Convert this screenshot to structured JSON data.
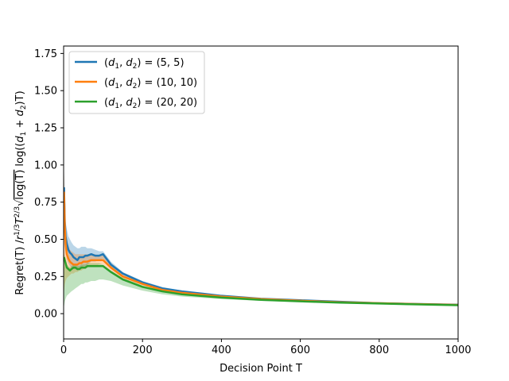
{
  "chart_data": {
    "type": "line",
    "xlabel": "Decision Point T",
    "ylabel": "Regret(T) /r^{1/3}T^{2/3}√log(T) log((d₁+d₂)T)",
    "ylabel_parts": {
      "prefix": "Regret(T) /",
      "r": "r",
      "r_exp": "1/3",
      "T1": "T",
      "T_exp": "2/3",
      "sqrt_content": "log(T)",
      "log": "log((",
      "d1": "d",
      "d1_sub": "1",
      "plus": " + ",
      "d2": "d",
      "d2_sub": "2",
      "tail": ")T)"
    },
    "xlim": [
      0,
      1000
    ],
    "ylim": [
      -0.17,
      1.8
    ],
    "xticks": [
      "0",
      "200",
      "400",
      "600",
      "800",
      "1000"
    ],
    "xtick_values": [
      0,
      200,
      400,
      600,
      800,
      1000
    ],
    "yticks": [
      "0.00",
      "0.25",
      "0.50",
      "0.75",
      "1.00",
      "1.25",
      "1.50",
      "1.75"
    ],
    "ytick_values": [
      0,
      0.25,
      0.5,
      0.75,
      1.0,
      1.25,
      1.5,
      1.75
    ],
    "grid": false,
    "legend_position": "top-left",
    "series": [
      {
        "name": "(d1, d2) = (5, 5)",
        "legend": {
          "open": "(",
          "d1": "d",
          "s1": "1",
          "comma": ", ",
          "d2": "d",
          "s2": "2",
          "close": ") = (5, 5)"
        },
        "color": "#1f77b4",
        "x": [
          1,
          3,
          5,
          8,
          12,
          16,
          20,
          25,
          30,
          35,
          40,
          45,
          50,
          55,
          60,
          70,
          80,
          90,
          100,
          120,
          150,
          200,
          250,
          300,
          400,
          500,
          600,
          700,
          800,
          900,
          1000
        ],
        "y": [
          0.85,
          0.62,
          0.52,
          0.47,
          0.43,
          0.41,
          0.4,
          0.38,
          0.37,
          0.36,
          0.38,
          0.38,
          0.38,
          0.39,
          0.39,
          0.4,
          0.39,
          0.39,
          0.4,
          0.33,
          0.27,
          0.21,
          0.17,
          0.15,
          0.12,
          0.1,
          0.09,
          0.08,
          0.07,
          0.065,
          0.06
        ],
        "upper": [
          0.95,
          0.72,
          0.62,
          0.57,
          0.52,
          0.5,
          0.48,
          0.46,
          0.45,
          0.44,
          0.44,
          0.45,
          0.45,
          0.45,
          0.44,
          0.44,
          0.43,
          0.42,
          0.42,
          0.35,
          0.28,
          0.22,
          0.18,
          0.155,
          0.125,
          0.105,
          0.092,
          0.082,
          0.072,
          0.067,
          0.062
        ],
        "lower": [
          0.72,
          0.52,
          0.42,
          0.37,
          0.34,
          0.32,
          0.31,
          0.3,
          0.3,
          0.29,
          0.31,
          0.31,
          0.32,
          0.32,
          0.33,
          0.35,
          0.35,
          0.36,
          0.37,
          0.31,
          0.26,
          0.2,
          0.165,
          0.145,
          0.115,
          0.095,
          0.085,
          0.075,
          0.068,
          0.063,
          0.058
        ]
      },
      {
        "name": "(d1, d2) = (10, 10)",
        "legend": {
          "open": "(",
          "d1": "d",
          "s1": "1",
          "comma": ", ",
          "d2": "d",
          "s2": "2",
          "close": ") = (10, 10)"
        },
        "color": "#ff7f0e",
        "x": [
          1,
          3,
          5,
          8,
          12,
          16,
          20,
          25,
          30,
          35,
          40,
          45,
          50,
          55,
          60,
          70,
          80,
          90,
          100,
          120,
          150,
          200,
          250,
          300,
          400,
          500,
          600,
          700,
          800,
          900,
          1000
        ],
        "y": [
          0.82,
          0.58,
          0.47,
          0.4,
          0.37,
          0.35,
          0.34,
          0.33,
          0.33,
          0.33,
          0.34,
          0.34,
          0.35,
          0.35,
          0.35,
          0.36,
          0.36,
          0.36,
          0.36,
          0.31,
          0.25,
          0.2,
          0.16,
          0.14,
          0.115,
          0.098,
          0.087,
          0.077,
          0.07,
          0.064,
          0.059
        ],
        "upper": [
          0.95,
          0.7,
          0.58,
          0.5,
          0.46,
          0.43,
          0.42,
          0.41,
          0.4,
          0.4,
          0.4,
          0.4,
          0.4,
          0.4,
          0.4,
          0.4,
          0.4,
          0.39,
          0.39,
          0.33,
          0.265,
          0.21,
          0.17,
          0.148,
          0.12,
          0.102,
          0.09,
          0.08,
          0.073,
          0.066,
          0.061
        ],
        "lower": [
          0.15,
          0.2,
          0.22,
          0.24,
          0.25,
          0.26,
          0.27,
          0.27,
          0.28,
          0.28,
          0.29,
          0.29,
          0.3,
          0.3,
          0.31,
          0.32,
          0.32,
          0.33,
          0.33,
          0.29,
          0.235,
          0.19,
          0.15,
          0.132,
          0.11,
          0.094,
          0.084,
          0.074,
          0.067,
          0.062,
          0.057
        ]
      },
      {
        "name": "(d1, d2) = (20, 20)",
        "legend": {
          "open": "(",
          "d1": "d",
          "s1": "1",
          "comma": ", ",
          "d2": "d",
          "s2": "2",
          "close": ") = (20, 20)"
        },
        "color": "#2ca02c",
        "x": [
          1,
          3,
          5,
          8,
          12,
          16,
          20,
          25,
          30,
          35,
          40,
          45,
          50,
          55,
          60,
          70,
          80,
          90,
          100,
          120,
          150,
          200,
          250,
          300,
          400,
          500,
          600,
          700,
          800,
          900,
          1000
        ],
        "y": [
          0.38,
          0.36,
          0.34,
          0.31,
          0.3,
          0.29,
          0.3,
          0.31,
          0.31,
          0.3,
          0.3,
          0.31,
          0.31,
          0.31,
          0.32,
          0.32,
          0.32,
          0.32,
          0.32,
          0.28,
          0.23,
          0.18,
          0.15,
          0.13,
          0.108,
          0.093,
          0.083,
          0.074,
          0.068,
          0.062,
          0.057
        ],
        "upper": [
          0.4,
          0.38,
          0.36,
          0.33,
          0.32,
          0.31,
          0.32,
          0.33,
          0.33,
          0.32,
          0.32,
          0.33,
          0.33,
          0.33,
          0.34,
          0.34,
          0.34,
          0.34,
          0.33,
          0.29,
          0.24,
          0.19,
          0.155,
          0.135,
          0.112,
          0.096,
          0.086,
          0.077,
          0.07,
          0.064,
          0.059
        ],
        "lower": [
          0.05,
          0.08,
          0.1,
          0.12,
          0.13,
          0.14,
          0.15,
          0.16,
          0.17,
          0.18,
          0.19,
          0.2,
          0.2,
          0.21,
          0.21,
          0.22,
          0.22,
          0.23,
          0.23,
          0.22,
          0.19,
          0.155,
          0.13,
          0.115,
          0.098,
          0.086,
          0.078,
          0.07,
          0.064,
          0.059,
          0.054
        ]
      }
    ]
  }
}
